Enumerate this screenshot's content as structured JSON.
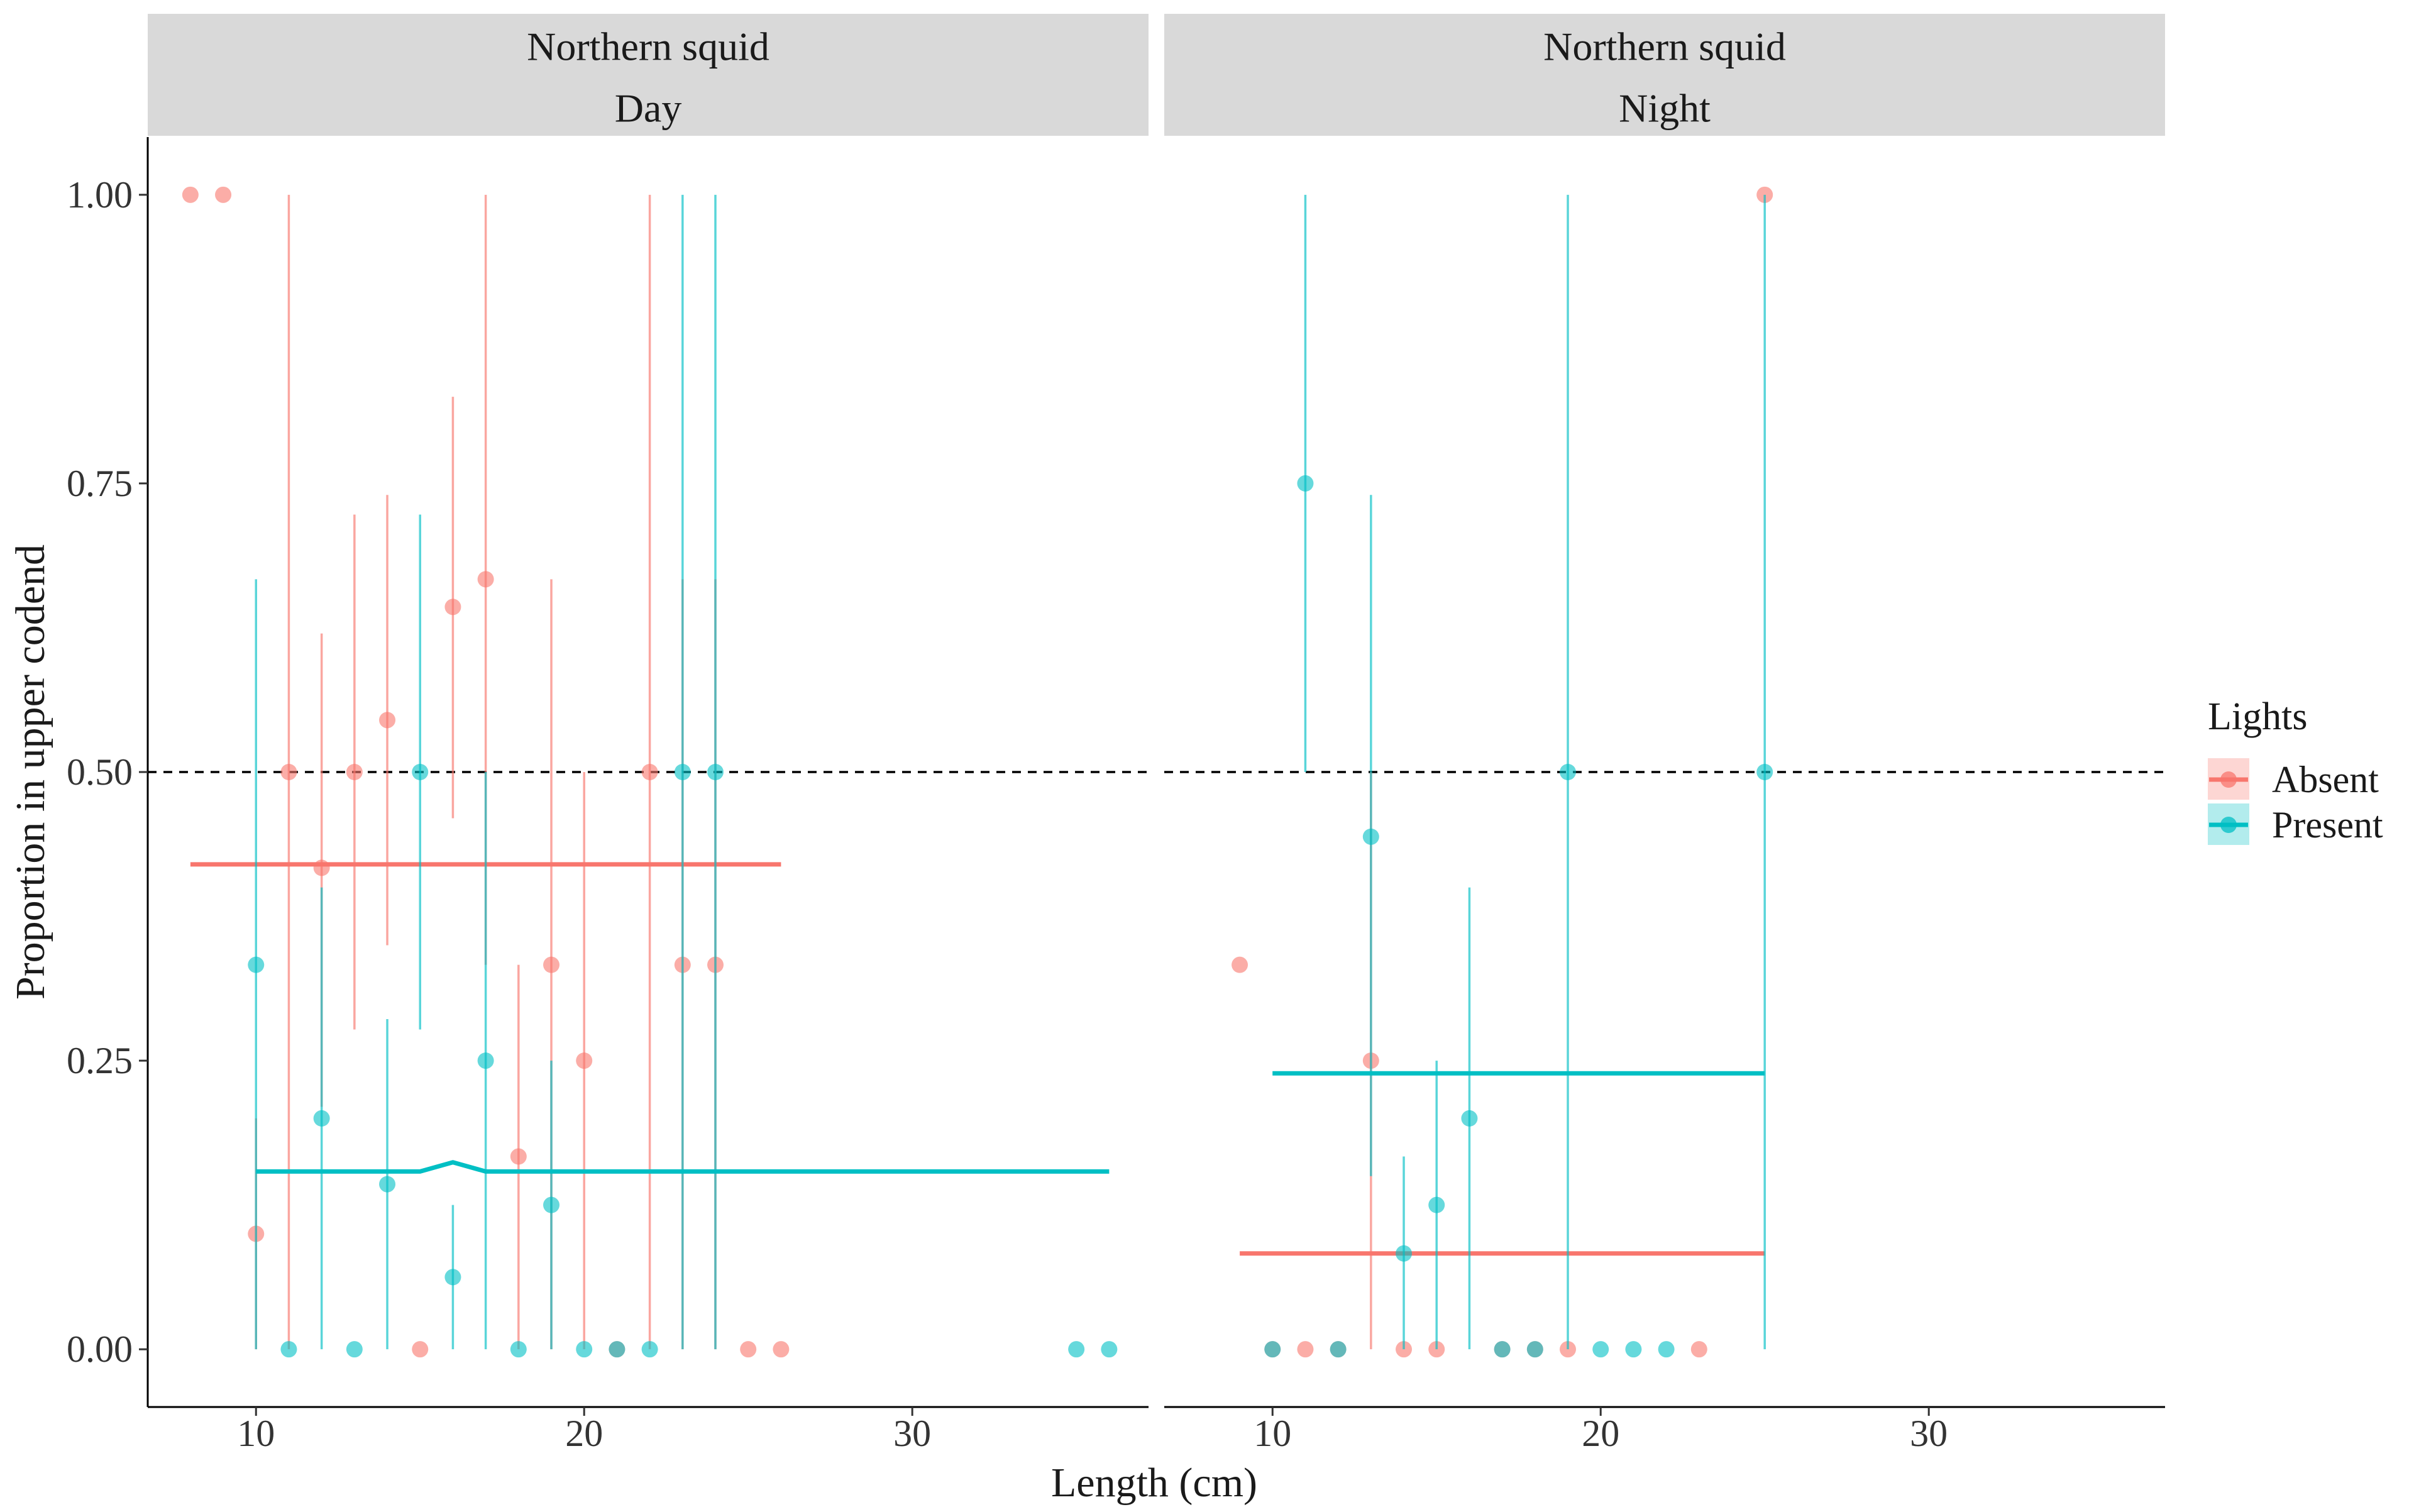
{
  "colors": {
    "Absent": "#F8766D",
    "Present": "#00BFC4",
    "strip_bg": "#D9D9D9",
    "reference_line": "#000000"
  },
  "chart_data": {
    "type": "scatter",
    "xlabel": "Length (cm)",
    "ylabel": "Proportion in upper codend",
    "xlim": [
      6.7,
      37.2
    ],
    "ylim": [
      -0.05,
      1.05
    ],
    "x_ticks": [
      10,
      20,
      30
    ],
    "y_ticks": [
      0,
      0.25,
      0.5,
      0.75,
      1.0
    ],
    "y_tick_labels": [
      "0.00",
      "0.25",
      "0.50",
      "0.75",
      "1.00"
    ],
    "reference_line": {
      "y": 0.5,
      "style": "dashed"
    },
    "grid": false,
    "legend": {
      "title": "Lights",
      "position": "right",
      "entries": [
        "Absent",
        "Present"
      ]
    },
    "panels": [
      {
        "strip": [
          "Northern squid",
          "Day"
        ],
        "series": [
          {
            "name": "Absent",
            "points": [
              {
                "x": 8,
                "y": 1.0
              },
              {
                "x": 9,
                "y": 1.0
              },
              {
                "x": 10,
                "y": 0.1,
                "lo": 0.0,
                "hi": 0.2
              },
              {
                "x": 11,
                "y": 0.5,
                "lo": 0.0,
                "hi": 1.0
              },
              {
                "x": 12,
                "y": 0.417,
                "lo": 0.21,
                "hi": 0.62
              },
              {
                "x": 13,
                "y": 0.5,
                "lo": 0.277,
                "hi": 0.723
              },
              {
                "x": 14,
                "y": 0.545,
                "lo": 0.35,
                "hi": 0.74
              },
              {
                "x": 15,
                "y": 0.0
              },
              {
                "x": 16,
                "y": 0.643,
                "lo": 0.46,
                "hi": 0.825
              },
              {
                "x": 17,
                "y": 0.667,
                "lo": 0.333,
                "hi": 1.0
              },
              {
                "x": 18,
                "y": 0.167,
                "lo": 0.0,
                "hi": 0.333
              },
              {
                "x": 19,
                "y": 0.333,
                "lo": 0.0,
                "hi": 0.667
              },
              {
                "x": 20,
                "y": 0.25,
                "lo": 0.0,
                "hi": 0.5
              },
              {
                "x": 21,
                "y": 0.0
              },
              {
                "x": 22,
                "y": 0.5,
                "lo": 0.0,
                "hi": 1.0
              },
              {
                "x": 23,
                "y": 0.333,
                "lo": 0.0,
                "hi": 0.667
              },
              {
                "x": 24,
                "y": 0.333,
                "lo": 0.0,
                "hi": 0.667
              },
              {
                "x": 25,
                "y": 0.0
              },
              {
                "x": 26,
                "y": 0.0
              }
            ],
            "fit": [
              [
                8,
                0.42
              ],
              [
                26,
                0.42
              ]
            ]
          },
          {
            "name": "Present",
            "points": [
              {
                "x": 10,
                "y": 0.333,
                "lo": 0.0,
                "hi": 0.667
              },
              {
                "x": 11,
                "y": 0.0
              },
              {
                "x": 12,
                "y": 0.2,
                "lo": 0.0,
                "hi": 0.4
              },
              {
                "x": 13,
                "y": 0.0
              },
              {
                "x": 14,
                "y": 0.143,
                "lo": 0.0,
                "hi": 0.286
              },
              {
                "x": 15,
                "y": 0.5,
                "lo": 0.277,
                "hi": 0.723
              },
              {
                "x": 16,
                "y": 0.0625,
                "lo": 0.0,
                "hi": 0.125
              },
              {
                "x": 17,
                "y": 0.25,
                "lo": 0.0,
                "hi": 0.5
              },
              {
                "x": 18,
                "y": 0.0
              },
              {
                "x": 19,
                "y": 0.125,
                "lo": 0.0,
                "hi": 0.25
              },
              {
                "x": 20,
                "y": 0.0
              },
              {
                "x": 21,
                "y": 0.0
              },
              {
                "x": 22,
                "y": 0.0
              },
              {
                "x": 23,
                "y": 0.5,
                "lo": 0.0,
                "hi": 1.0
              },
              {
                "x": 24,
                "y": 0.5,
                "lo": 0.0,
                "hi": 1.0
              },
              {
                "x": 35,
                "y": 0.0
              },
              {
                "x": 36,
                "y": 0.0
              }
            ],
            "fit": [
              [
                10,
                0.154
              ],
              [
                15,
                0.154
              ],
              [
                16,
                0.162
              ],
              [
                17,
                0.154
              ],
              [
                36,
                0.154
              ]
            ]
          }
        ]
      },
      {
        "strip": [
          "Northern squid",
          "Night"
        ],
        "series": [
          {
            "name": "Absent",
            "points": [
              {
                "x": 9,
                "y": 0.333
              },
              {
                "x": 10,
                "y": 0.0
              },
              {
                "x": 11,
                "y": 0.0
              },
              {
                "x": 12,
                "y": 0.0
              },
              {
                "x": 13,
                "y": 0.25,
                "lo": 0.0,
                "hi": 0.5
              },
              {
                "x": 14,
                "y": 0.0
              },
              {
                "x": 15,
                "y": 0.0
              },
              {
                "x": 17,
                "y": 0.0
              },
              {
                "x": 18,
                "y": 0.0
              },
              {
                "x": 19,
                "y": 0.0
              },
              {
                "x": 23,
                "y": 0.0
              },
              {
                "x": 25,
                "y": 1.0
              }
            ],
            "fit": [
              [
                9,
                0.083
              ],
              [
                25,
                0.083
              ]
            ]
          },
          {
            "name": "Present",
            "points": [
              {
                "x": 10,
                "y": 0.0
              },
              {
                "x": 11,
                "y": 0.75,
                "lo": 0.5,
                "hi": 1.0
              },
              {
                "x": 12,
                "y": 0.0
              },
              {
                "x": 13,
                "y": 0.444,
                "lo": 0.15,
                "hi": 0.74
              },
              {
                "x": 14,
                "y": 0.083,
                "lo": 0.0,
                "hi": 0.167
              },
              {
                "x": 15,
                "y": 0.125,
                "lo": 0.0,
                "hi": 0.25
              },
              {
                "x": 16,
                "y": 0.2,
                "lo": 0.0,
                "hi": 0.4
              },
              {
                "x": 17,
                "y": 0.0
              },
              {
                "x": 18,
                "y": 0.0
              },
              {
                "x": 19,
                "y": 0.5,
                "lo": 0.0,
                "hi": 1.0
              },
              {
                "x": 20,
                "y": 0.0
              },
              {
                "x": 21,
                "y": 0.0
              },
              {
                "x": 22,
                "y": 0.0
              },
              {
                "x": 25,
                "y": 0.5,
                "lo": 0.0,
                "hi": 1.0
              }
            ],
            "fit": [
              [
                10,
                0.239
              ],
              [
                25,
                0.239
              ]
            ]
          }
        ]
      }
    ]
  }
}
